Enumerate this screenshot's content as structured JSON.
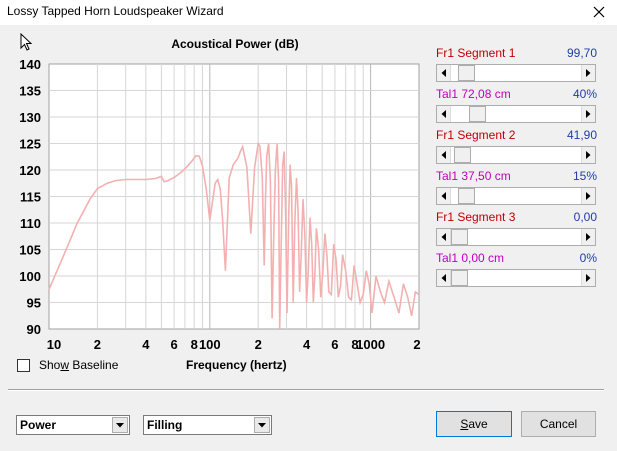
{
  "window": {
    "title": "Lossy Tapped Horn Loudspeaker Wizard",
    "close_icon": "close-icon"
  },
  "sliders": [
    {
      "label": "Fr1  Segment 1",
      "value": "99,70",
      "label_color": "#c00000",
      "value_color": "#1f3ea8",
      "position": 0.06
    },
    {
      "label": "Tal1  72,08 cm",
      "value": "40%",
      "label_color": "#c000c0",
      "value_color": "#1f3ea8",
      "position": 0.16
    },
    {
      "label": "Fr1  Segment 2",
      "value": "41,90",
      "label_color": "#c00000",
      "value_color": "#1f3ea8",
      "position": 0.03
    },
    {
      "label": "Tal1  37,50 cm",
      "value": "15%",
      "label_color": "#c000c0",
      "value_color": "#1f3ea8",
      "position": 0.06
    },
    {
      "label": "Fr1  Segment 3",
      "value": "0,00",
      "label_color": "#c00000",
      "value_color": "#1f3ea8",
      "position": 0.0
    },
    {
      "label": "Tal1  0,00 cm",
      "value": "0%",
      "label_color": "#c000c0",
      "value_color": "#1f3ea8",
      "position": 0.0
    }
  ],
  "controls": {
    "show_baseline_label": "Show Baseline",
    "show_baseline_checked": false,
    "mode_select": "Power",
    "filling_select": "Filling",
    "save_label": "Save",
    "cancel_label": "Cancel"
  },
  "chart_data": {
    "type": "line",
    "title": "Acoustical Power (dB)",
    "xlabel": "Frequency (hertz)",
    "ylabel": "",
    "x_scale": "log",
    "xlim": [
      10,
      2000
    ],
    "ylim": [
      90,
      140
    ],
    "y_ticks": [
      140,
      135,
      130,
      125,
      120,
      115,
      110,
      105,
      100,
      95,
      90
    ],
    "x_ticks": [
      {
        "value": 10,
        "label": "10"
      },
      {
        "value": 20,
        "label": "2"
      },
      {
        "value": 40,
        "label": "4"
      },
      {
        "value": 60,
        "label": "6"
      },
      {
        "value": 80,
        "label": "8"
      },
      {
        "value": 100,
        "label": "100"
      },
      {
        "value": 200,
        "label": "2"
      },
      {
        "value": 400,
        "label": "4"
      },
      {
        "value": 600,
        "label": "6"
      },
      {
        "value": 800,
        "label": "8"
      },
      {
        "value": 1000,
        "label": "1000"
      },
      {
        "value": 2000,
        "label": "2"
      }
    ],
    "grid": true,
    "line_color": "#f4b0b0",
    "series": [
      {
        "x": [
          10,
          12,
          15,
          18,
          20,
          23,
          26,
          30,
          35,
          40,
          46,
          50,
          52,
          55,
          60,
          66,
          72,
          78,
          82,
          86,
          90,
          95,
          100,
          104,
          108,
          112,
          116,
          120,
          125,
          132,
          140,
          150,
          155,
          160,
          170,
          180,
          190,
          200,
          205,
          212,
          218,
          222,
          226,
          232,
          238,
          244,
          250,
          256,
          262,
          268,
          272,
          278,
          284,
          290,
          296,
          302,
          310,
          316,
          322,
          330,
          338,
          346,
          354,
          362,
          370,
          380,
          390,
          400,
          410,
          420,
          430,
          440,
          450,
          460,
          475,
          490,
          505,
          520,
          535,
          550,
          570,
          590,
          610,
          630,
          650,
          670,
          700,
          730,
          760,
          790,
          820,
          860,
          900,
          940,
          980,
          1020,
          1080,
          1150,
          1220,
          1300,
          1400,
          1500,
          1600,
          1700,
          1800,
          1900,
          2000
        ],
        "y": [
          97.5,
          103,
          110,
          114.5,
          116.5,
          117.5,
          118,
          118.2,
          118.2,
          118.2,
          118.4,
          118.8,
          117.8,
          118,
          118.6,
          119.5,
          120.6,
          121.8,
          122.7,
          122.6,
          120.8,
          116.5,
          110.5,
          114,
          117.5,
          118.2,
          116.5,
          111,
          101,
          118.5,
          121,
          122.3,
          123.5,
          124.4,
          120.5,
          108,
          120.5,
          125,
          124.5,
          118.5,
          102,
          114.5,
          122.5,
          125,
          118,
          92,
          108,
          120,
          125,
          118,
          90,
          106,
          121,
          123.5,
          112,
          93,
          112,
          121,
          117,
          95,
          110,
          118.5,
          112,
          97,
          104,
          114.5,
          108,
          95,
          101,
          111,
          106,
          95,
          100,
          109,
          105,
          96,
          101,
          108,
          104,
          97,
          96.5,
          106,
          103,
          96,
          98,
          104,
          101,
          96,
          95.5,
          102,
          99,
          95,
          96.5,
          101,
          98.5,
          93,
          100,
          97,
          95,
          99,
          96,
          93,
          98.5,
          96,
          92.5,
          97,
          96.5
        ]
      }
    ]
  }
}
